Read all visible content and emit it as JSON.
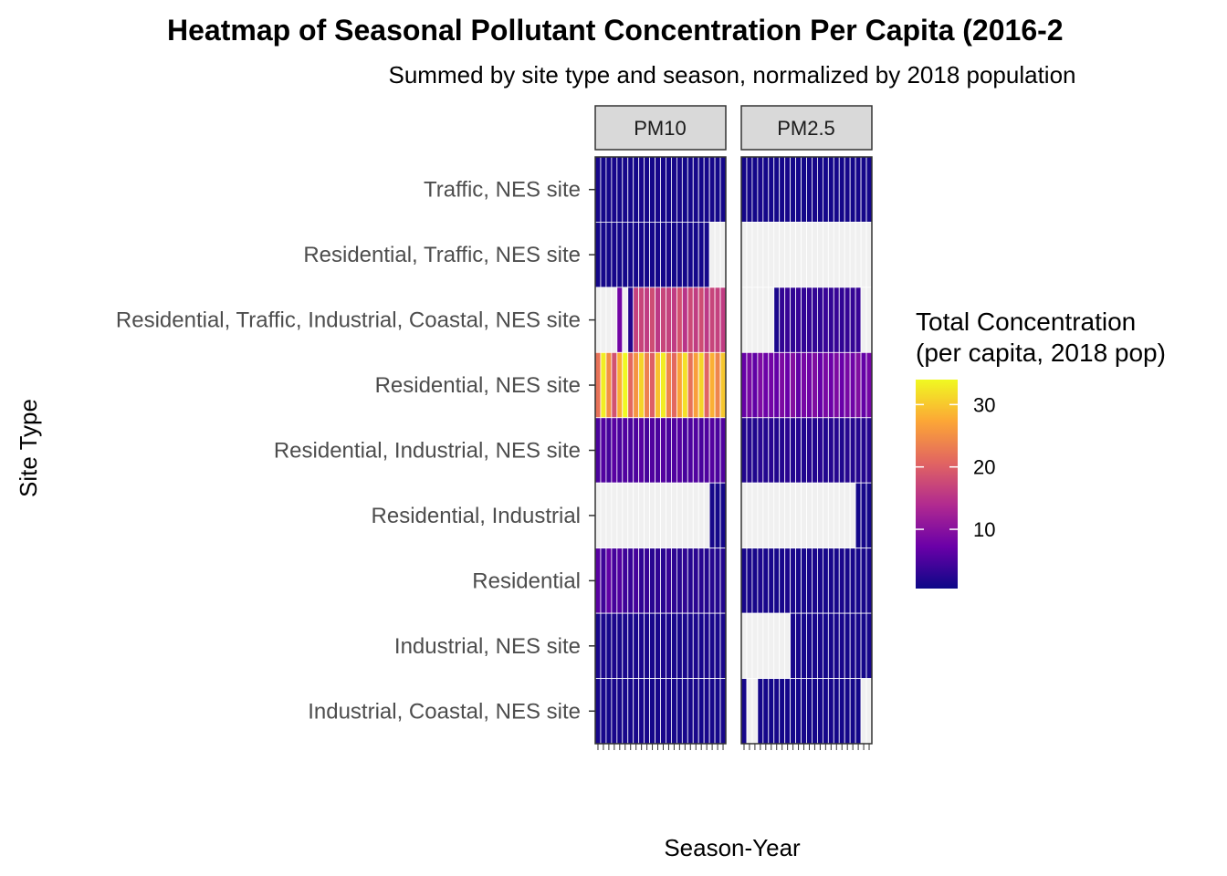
{
  "chart_data": {
    "type": "heatmap",
    "title": "Heatmap of Seasonal Pollutant Concentration Per Capita (2016-2",
    "subtitle": "Summed by site type and season, normalized by 2018 population",
    "xlabel": "Season-Year",
    "ylabel": "Site Type",
    "facets": [
      "PM10",
      "PM2.5"
    ],
    "site_types": [
      "Traffic, NES site",
      "Residential, Traffic, NES site",
      "Residential, Traffic, Industrial, Coastal, NES site",
      "Residential, NES site",
      "Residential, Industrial, NES site",
      "Residential, Industrial",
      "Residential",
      "Industrial, NES site",
      "Industrial, Coastal, NES site"
    ],
    "legend": {
      "title_line1": "Total Concentration",
      "title_line2": "(per capita, 2018 pop)",
      "ticks": [
        10,
        20,
        30
      ],
      "range": [
        0.5,
        34
      ],
      "palette": [
        "#0d0887",
        "#6a00a8",
        "#b12a90",
        "#e16462",
        "#fca636",
        "#f0f921"
      ]
    },
    "n_columns_per_facet": 24,
    "missing_color": "#f0f0f0",
    "values": {
      "PM10": {
        "Traffic, NES site": [
          1.2,
          1.0,
          1.1,
          1.3,
          1.0,
          1.2,
          1.1,
          1.0,
          1.3,
          1.1,
          1.0,
          1.2,
          1.1,
          1.0,
          1.2,
          1.3,
          1.0,
          1.1,
          1.2,
          1.0,
          1.1,
          1.2,
          1.0,
          1.1
        ],
        "Residential, Traffic, NES site": [
          1.0,
          1.1,
          1.0,
          1.2,
          1.0,
          1.1,
          1.0,
          1.1,
          1.2,
          1.0,
          1.1,
          1.0,
          1.1,
          1.2,
          1.0,
          1.1,
          1.0,
          1.1,
          1.0,
          1.1,
          1.0,
          null,
          null,
          null
        ],
        "Residential, Traffic, Industrial, Coastal, NES site": [
          null,
          null,
          null,
          null,
          8.0,
          null,
          2.0,
          16.5,
          17.0,
          16.0,
          18.0,
          15.5,
          17.0,
          16.5,
          16.0,
          18.5,
          15.0,
          17.5,
          16.0,
          18.0,
          15.5,
          17.0,
          16.5,
          16.0
        ],
        "Residential, NES site": [
          22.0,
          33.0,
          25.0,
          18.5,
          28.0,
          34.0,
          21.0,
          25.5,
          31.0,
          23.5,
          20.0,
          29.5,
          33.0,
          24.0,
          21.0,
          27.0,
          32.0,
          22.0,
          26.5,
          31.0,
          20.5,
          28.0,
          24.0,
          30.0
        ],
        "Residential, Industrial, NES site": [
          5.0,
          5.5,
          4.5,
          6.0,
          5.0,
          5.5,
          4.8,
          5.2,
          5.8,
          4.6,
          5.4,
          5.0,
          5.6,
          4.9,
          5.3,
          5.7,
          4.7,
          5.1,
          5.5,
          4.8,
          5.2,
          5.6,
          4.9,
          5.3
        ],
        "Residential, Industrial": [
          null,
          null,
          null,
          null,
          null,
          null,
          null,
          null,
          null,
          null,
          null,
          null,
          null,
          null,
          null,
          null,
          null,
          null,
          null,
          null,
          null,
          1.2,
          1.0,
          1.1
        ],
        "Residential": [
          6.0,
          4.0,
          6.5,
          4.5,
          5.5,
          4.0,
          3.5,
          4.5,
          3.0,
          3.5,
          2.5,
          3.0,
          2.5,
          3.5,
          2.8,
          2.5,
          3.0,
          2.2,
          2.6,
          2.4,
          2.0,
          2.3,
          2.0,
          2.1
        ],
        "Industrial, NES site": [
          1.4,
          1.5,
          1.3,
          1.6,
          1.4,
          1.5,
          1.3,
          1.4,
          1.6,
          1.5,
          1.3,
          1.4,
          1.5,
          1.6,
          1.4,
          1.3,
          1.5,
          1.4,
          1.6,
          1.3,
          1.5,
          1.4,
          1.3,
          1.5
        ],
        "Industrial, Coastal, NES site": [
          1.2,
          1.3,
          1.1,
          1.4,
          1.2,
          1.3,
          1.1,
          1.2,
          1.4,
          1.3,
          1.1,
          1.2,
          1.3,
          1.4,
          1.2,
          1.1,
          1.3,
          1.2,
          1.4,
          1.1,
          1.3,
          1.2,
          1.1,
          1.3
        ]
      },
      "PM2.5": {
        "Traffic, NES site": [
          1.0,
          1.1,
          1.0,
          1.2,
          1.0,
          1.1,
          1.0,
          1.1,
          1.2,
          1.0,
          1.1,
          1.0,
          1.1,
          1.2,
          1.0,
          1.1,
          1.0,
          1.1,
          1.0,
          1.1,
          1.0,
          1.2,
          1.0,
          1.1
        ],
        "Residential, Traffic, NES site": [
          null,
          null,
          null,
          null,
          null,
          null,
          null,
          null,
          null,
          null,
          null,
          null,
          null,
          null,
          null,
          null,
          null,
          null,
          null,
          null,
          null,
          null,
          null,
          null
        ],
        "Residential, Traffic, Industrial, Coastal, NES site": [
          null,
          null,
          null,
          null,
          null,
          null,
          1.5,
          3.2,
          3.5,
          3.0,
          3.6,
          3.1,
          3.4,
          3.3,
          3.0,
          3.7,
          3.2,
          3.5,
          3.1,
          3.4,
          3.3,
          3.6,
          null,
          null
        ],
        "Residential, NES site": [
          7.0,
          8.5,
          6.5,
          9.0,
          7.5,
          8.0,
          6.8,
          8.8,
          7.2,
          9.5,
          6.6,
          8.3,
          7.8,
          9.2,
          6.9,
          8.6,
          7.4,
          9.0,
          7.1,
          8.4,
          7.7,
          9.3,
          6.7,
          8.1
        ],
        "Residential, Industrial, NES site": [
          2.0,
          2.3,
          1.9,
          2.5,
          2.1,
          2.4,
          1.8,
          2.2,
          2.6,
          2.0,
          2.3,
          1.9,
          2.4,
          2.1,
          2.5,
          2.0,
          2.2,
          2.3,
          1.9,
          2.4,
          2.1,
          2.2,
          2.0,
          2.3
        ],
        "Residential, Industrial": [
          null,
          null,
          null,
          null,
          null,
          null,
          null,
          null,
          null,
          null,
          null,
          null,
          null,
          null,
          null,
          null,
          null,
          null,
          null,
          null,
          null,
          1.0,
          1.1,
          1.0
        ],
        "Residential": [
          1.3,
          1.4,
          1.2,
          1.5,
          1.3,
          1.4,
          1.2,
          1.3,
          1.5,
          1.4,
          1.2,
          1.3,
          1.4,
          1.5,
          1.3,
          1.2,
          1.4,
          1.3,
          1.5,
          1.2,
          1.4,
          1.3,
          1.2,
          1.4
        ],
        "Industrial, NES site": [
          null,
          null,
          null,
          null,
          null,
          null,
          null,
          null,
          null,
          1.2,
          1.3,
          1.1,
          1.2,
          1.4,
          1.3,
          1.1,
          1.2,
          1.3,
          1.4,
          1.1,
          1.3,
          1.2,
          1.1,
          1.3
        ],
        "Industrial, Coastal, NES site": [
          1.2,
          null,
          null,
          1.0,
          1.1,
          1.0,
          1.2,
          1.0,
          1.1,
          1.0,
          1.1,
          1.2,
          1.0,
          1.1,
          1.0,
          1.1,
          1.2,
          1.0,
          1.1,
          1.0,
          1.1,
          1.0,
          null,
          null
        ]
      }
    }
  }
}
